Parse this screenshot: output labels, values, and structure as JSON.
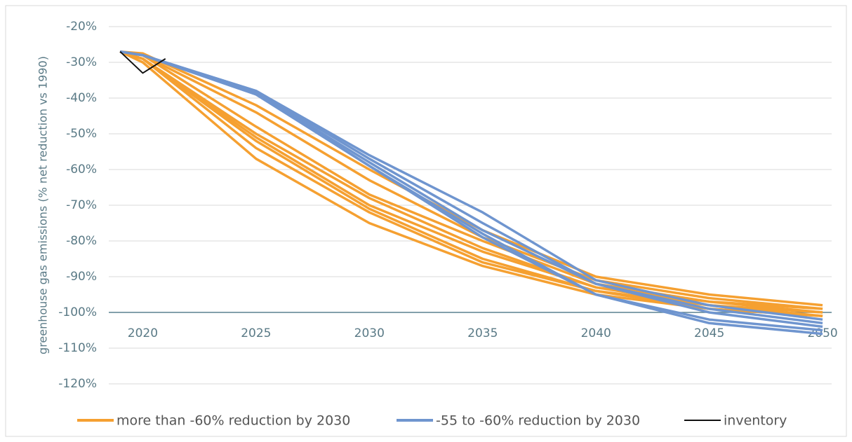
{
  "chart_data": {
    "type": "line",
    "y_label": "greenhouse gas emissions (% net reduction vs 1990)",
    "x": [
      2019,
      2020,
      2025,
      2030,
      2035,
      2040,
      2045,
      2050
    ],
    "xlim": [
      2018.5,
      2050.4
    ],
    "xticks": [
      2020,
      2025,
      2030,
      2035,
      2040,
      2045,
      2050
    ],
    "ylim": [
      -120,
      -20
    ],
    "yticks": [
      {
        "value": -20,
        "label": "-20%"
      },
      {
        "value": -30,
        "label": "-30%"
      },
      {
        "value": -40,
        "label": "-40%"
      },
      {
        "value": -50,
        "label": "-50%"
      },
      {
        "value": -60,
        "label": "-60%"
      },
      {
        "value": -70,
        "label": "-70%"
      },
      {
        "value": -80,
        "label": "-80%"
      },
      {
        "value": -90,
        "label": "-90%"
      },
      {
        "value": -100,
        "label": "-100%"
      },
      {
        "value": -110,
        "label": "-110%"
      },
      {
        "value": -120,
        "label": "-120%"
      }
    ],
    "x_axis_at": -100,
    "grid": true,
    "legend": "bottom",
    "series": [
      {
        "name": "more than -60% reduction by 2030",
        "color": "#f5a031",
        "lines": [
          [
            -27,
            -27.5,
            -42,
            -60,
            -77,
            -90,
            -95,
            -98
          ],
          [
            -27,
            -28,
            -44,
            -63,
            -79,
            -91,
            -96,
            -99
          ],
          [
            -27,
            -28,
            -48,
            -67,
            -80,
            -92,
            -97,
            -99
          ],
          [
            -27,
            -29,
            -50,
            -68,
            -82,
            -93,
            -97,
            -100
          ],
          [
            -27,
            -29,
            -51,
            -70,
            -83,
            -93,
            -98,
            -100
          ],
          [
            -27,
            -29,
            -52,
            -71,
            -85,
            -94,
            -98,
            -101
          ],
          [
            -27,
            -29,
            -54,
            -72,
            -86,
            -94,
            -99,
            -101
          ],
          [
            -27,
            -30,
            -57,
            -75,
            -87,
            -95,
            -99,
            -101
          ]
        ]
      },
      {
        "name": "-55 to -60% reduction by 2030",
        "color": "#6f95cf",
        "lines": [
          [
            -27,
            -28,
            -38,
            -56,
            -72,
            -91,
            -98,
            -102
          ],
          [
            -27,
            -28,
            -38,
            -57,
            -75,
            -92,
            -99,
            -103
          ],
          [
            -27,
            -28,
            -38.5,
            -58,
            -77,
            -92,
            -100,
            -104
          ],
          [
            -27,
            -28,
            -38.5,
            -59,
            -78,
            -95,
            -102,
            -105
          ],
          [
            -27,
            -28,
            -39,
            -59,
            -79,
            -95,
            -103,
            -106
          ]
        ]
      },
      {
        "name": "inventory",
        "color": "#111111",
        "x": [
          2019,
          2020,
          2021
        ],
        "lines": [
          [
            -27,
            -33,
            -29
          ]
        ]
      }
    ]
  }
}
